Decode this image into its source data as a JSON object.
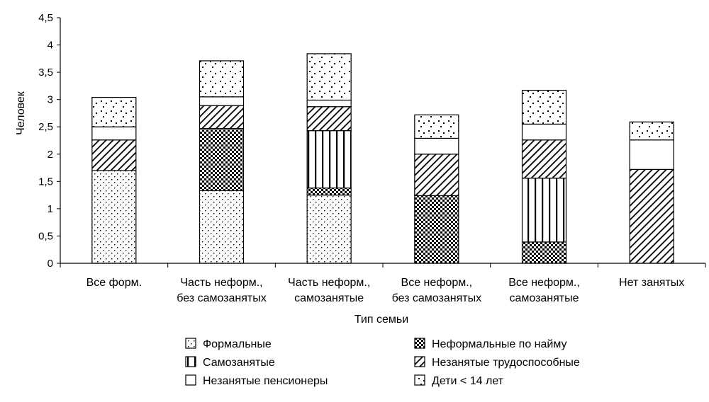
{
  "chart_data": {
    "type": "bar",
    "stacked": true,
    "title": "",
    "xlabel": "Тип семьи",
    "ylabel": "Человек",
    "ylim": [
      0,
      4.5
    ],
    "ytick_step": 0.5,
    "ytick_labels": [
      "0",
      "0,5",
      "1",
      "1,5",
      "2",
      "2,5",
      "3",
      "3,5",
      "4",
      "4,5"
    ],
    "categories": [
      [
        "Все форм."
      ],
      [
        "Часть неформ.,",
        "без самозанятых"
      ],
      [
        "Часть неформ.,",
        "самозанятые"
      ],
      [
        "Все неформ.,",
        "без самозанятых"
      ],
      [
        "Все неформ.,",
        "самозанятые"
      ],
      [
        "Нет занятых"
      ]
    ],
    "series": [
      {
        "name": "Формальные",
        "pattern": "dots",
        "values": [
          1.7,
          1.33,
          1.25,
          0,
          0,
          0
        ]
      },
      {
        "name": "Неформальные по найму",
        "pattern": "checker",
        "values": [
          0,
          1.14,
          0.13,
          1.24,
          0.39,
          0
        ]
      },
      {
        "name": "Самозанятые",
        "pattern": "vlines",
        "values": [
          0,
          0,
          1.05,
          0,
          1.17,
          0
        ]
      },
      {
        "name": "Незанятые трудоспособные",
        "pattern": "diag",
        "values": [
          0.56,
          0.42,
          0.44,
          0.76,
          0.7,
          1.72
        ]
      },
      {
        "name": "Незанятые пенсионеры",
        "pattern": "none",
        "values": [
          0.24,
          0.16,
          0.12,
          0.29,
          0.29,
          0.54
        ]
      },
      {
        "name": "Дети < 14 лет",
        "pattern": "sparse",
        "values": [
          0.54,
          0.66,
          0.85,
          0.43,
          0.62,
          0.33
        ]
      }
    ],
    "legend": {
      "left": [
        "Формальные",
        "Самозанятые",
        "Незанятые пенсионеры"
      ],
      "right": [
        "Неформальные по найму",
        "Незанятые трудоспособные",
        "Дети < 14 лет"
      ]
    }
  }
}
